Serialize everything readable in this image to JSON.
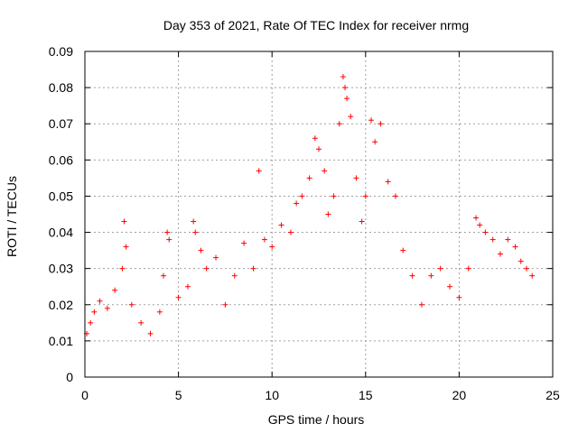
{
  "chart_data": {
    "type": "scatter",
    "title": "Day 353 of 2021, Rate Of TEC Index for receiver nrmg",
    "xlabel": "GPS time / hours",
    "ylabel": "ROTI / TECUs",
    "xlim": [
      0,
      25
    ],
    "ylim": [
      0,
      0.09
    ],
    "x_ticks": [
      "0",
      "5",
      "10",
      "15",
      "20",
      "25"
    ],
    "y_ticks": [
      "0",
      "0.01",
      "0.02",
      "0.03",
      "0.04",
      "0.05",
      "0.06",
      "0.07",
      "0.08",
      "0.09"
    ],
    "grid": true,
    "marker": "+",
    "color": "#ff0000",
    "series": [
      {
        "name": "ROTI",
        "x": [
          0.1,
          0.3,
          0.5,
          0.8,
          1.2,
          1.6,
          2.0,
          2.1,
          2.2,
          2.5,
          3.0,
          3.5,
          4.0,
          4.2,
          4.4,
          4.5,
          5.0,
          5.5,
          5.8,
          5.9,
          6.2,
          6.5,
          7.0,
          7.5,
          8.0,
          8.5,
          9.0,
          9.3,
          9.6,
          10.0,
          10.5,
          11.0,
          11.3,
          11.6,
          12.0,
          12.3,
          12.5,
          12.8,
          13.0,
          13.3,
          13.6,
          13.8,
          13.9,
          14.0,
          14.2,
          14.5,
          14.8,
          15.0,
          15.3,
          15.5,
          15.8,
          16.2,
          16.6,
          17.0,
          17.5,
          18.0,
          18.5,
          19.0,
          19.5,
          20.0,
          20.5,
          20.9,
          21.1,
          21.4,
          21.8,
          22.2,
          22.6,
          23.0,
          23.3,
          23.6,
          23.9
        ],
        "y": [
          0.012,
          0.015,
          0.018,
          0.021,
          0.019,
          0.024,
          0.03,
          0.043,
          0.036,
          0.02,
          0.015,
          0.012,
          0.018,
          0.028,
          0.04,
          0.038,
          0.022,
          0.025,
          0.043,
          0.04,
          0.035,
          0.03,
          0.033,
          0.02,
          0.028,
          0.037,
          0.03,
          0.057,
          0.038,
          0.036,
          0.042,
          0.04,
          0.048,
          0.05,
          0.055,
          0.066,
          0.063,
          0.057,
          0.045,
          0.05,
          0.07,
          0.083,
          0.08,
          0.077,
          0.072,
          0.055,
          0.043,
          0.05,
          0.071,
          0.065,
          0.07,
          0.054,
          0.05,
          0.035,
          0.028,
          0.02,
          0.028,
          0.03,
          0.025,
          0.022,
          0.03,
          0.044,
          0.042,
          0.04,
          0.038,
          0.034,
          0.038,
          0.036,
          0.032,
          0.03,
          0.028
        ]
      }
    ]
  }
}
